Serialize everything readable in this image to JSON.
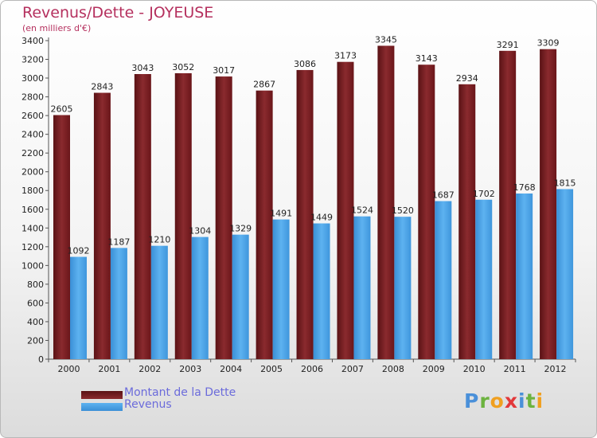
{
  "title": "Revenus/Dette - JOYEUSE",
  "subtitle": "(en milliers d'€)",
  "logo": {
    "text": "Proxiti",
    "letters": [
      {
        "ch": "P",
        "color": "#4a90d9"
      },
      {
        "ch": "r",
        "color": "#6cb33f"
      },
      {
        "ch": "o",
        "color": "#f0a020"
      },
      {
        "ch": "x",
        "color": "#e2383a"
      },
      {
        "ch": "i",
        "color": "#4a90d9"
      },
      {
        "ch": "t",
        "color": "#6cb33f"
      },
      {
        "ch": "i",
        "color": "#f0a020"
      }
    ]
  },
  "chart_data": {
    "type": "bar",
    "categories": [
      "2000",
      "2001",
      "2002",
      "2003",
      "2004",
      "2005",
      "2006",
      "2007",
      "2008",
      "2009",
      "2010",
      "2011",
      "2012"
    ],
    "series": [
      {
        "name": "Montant de la Dette",
        "values": [
          2605,
          2843,
          3043,
          3052,
          3017,
          2867,
          3086,
          3173,
          3345,
          3143,
          2934,
          3291,
          3309
        ],
        "color": "#7a1c20"
      },
      {
        "name": "Revenus",
        "values": [
          1092,
          1187,
          1210,
          1304,
          1329,
          1491,
          1449,
          1524,
          1520,
          1687,
          1702,
          1768,
          1815
        ],
        "color": "#4aa3e8"
      }
    ],
    "title": "Revenus/Dette - JOYEUSE",
    "ylabel": "(en milliers d'€)",
    "ylim": [
      0,
      3400
    ],
    "ytick_step": 200,
    "grid": false,
    "legend": "bottom-left"
  }
}
